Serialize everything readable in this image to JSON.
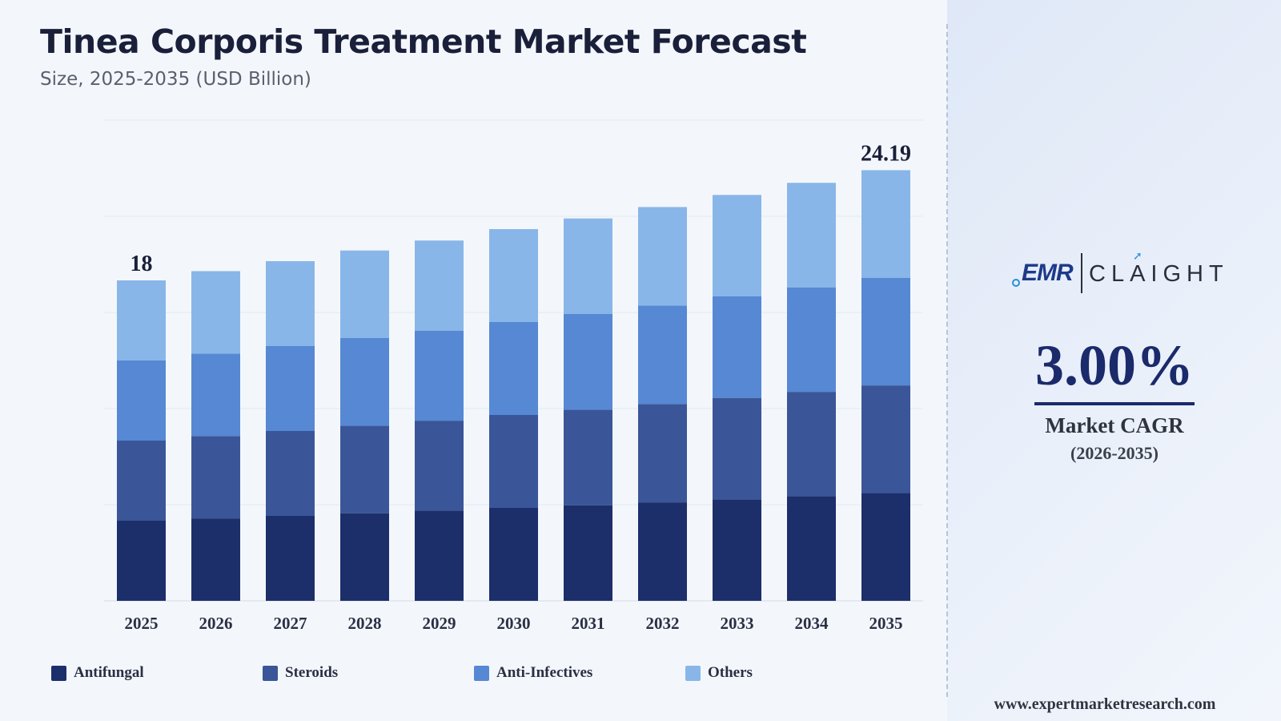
{
  "header": {
    "title": "Tinea Corporis Treatment Market Forecast",
    "subtitle": "Size, 2025-2035 (USD Billion)"
  },
  "chart_data": {
    "type": "bar",
    "stacked": true,
    "categories": [
      "2025",
      "2026",
      "2027",
      "2028",
      "2029",
      "2030",
      "2031",
      "2032",
      "2033",
      "2034",
      "2035"
    ],
    "series": [
      {
        "name": "Antifungal",
        "color": "#1c2f6b",
        "values": [
          4.5,
          4.63,
          4.77,
          4.92,
          5.06,
          5.22,
          5.37,
          5.53,
          5.7,
          5.87,
          6.05
        ]
      },
      {
        "name": "Steroids",
        "color": "#3a5699",
        "values": [
          4.5,
          4.63,
          4.77,
          4.92,
          5.06,
          5.22,
          5.37,
          5.53,
          5.7,
          5.87,
          6.05
        ]
      },
      {
        "name": "Anti-Infectives",
        "color": "#5688d4",
        "values": [
          4.5,
          4.63,
          4.77,
          4.92,
          5.06,
          5.22,
          5.37,
          5.53,
          5.7,
          5.87,
          6.05
        ]
      },
      {
        "name": "Others",
        "color": "#89b6e8",
        "values": [
          4.5,
          4.63,
          4.77,
          4.92,
          5.06,
          5.22,
          5.37,
          5.53,
          5.7,
          5.87,
          6.04
        ]
      }
    ],
    "total_labels": [
      {
        "category": "2025",
        "text": "18"
      },
      {
        "category": "2035",
        "text": "24.19"
      }
    ],
    "ylim": [
      0,
      27
    ],
    "grid": true,
    "legend": "bottom",
    "title": "Tinea Corporis Treatment Market Forecast",
    "subtitle": "Size, 2025-2035 (USD Billion)"
  },
  "sidebar": {
    "logo": "EMR | CLAIGHT",
    "cagr_value": "3.00%",
    "cagr_label": "Market CAGR",
    "cagr_period": "(2026-2035)"
  },
  "footer": {
    "website": "www.expertmarketresearch.com"
  },
  "colors": {
    "title": "#1a1f3a",
    "accent": "#1b2a6b"
  }
}
